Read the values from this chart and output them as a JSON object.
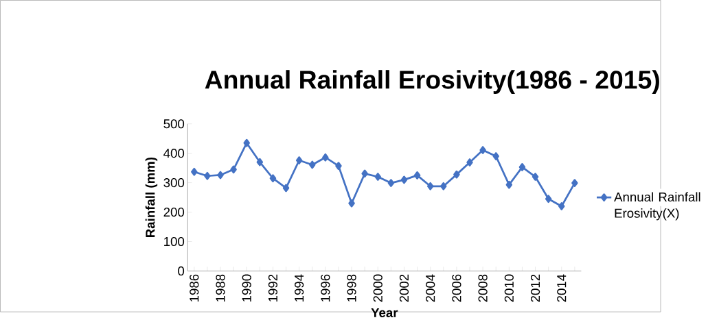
{
  "chart_data": {
    "type": "line",
    "title": "Annual Rainfall Erosivity(1986 - 2015)",
    "xlabel": "Year",
    "ylabel": "Rainfall (mm)",
    "categories": [
      "1986",
      null,
      "1988",
      null,
      "1990",
      null,
      "1992",
      null,
      "1994",
      null,
      "1996",
      null,
      "1998",
      null,
      "2000",
      null,
      "2002",
      null,
      "2004",
      null,
      "2006",
      null,
      "2008",
      null,
      "2010",
      null,
      "2012",
      null,
      "2014",
      null
    ],
    "series": [
      {
        "name": "Annual Rainfall Erosivity(X)",
        "color": "#4472c4",
        "values": [
          337,
          323,
          326,
          345,
          435,
          370,
          315,
          282,
          376,
          361,
          386,
          357,
          230,
          331,
          320,
          299,
          310,
          325,
          288,
          288,
          328,
          369,
          411,
          390,
          293,
          353,
          320,
          245,
          220,
          299
        ]
      }
    ],
    "ylim": [
      0,
      500
    ],
    "yticks": [
      0,
      100,
      200,
      300,
      400,
      500
    ],
    "legend": "right",
    "marker": "diamond"
  }
}
